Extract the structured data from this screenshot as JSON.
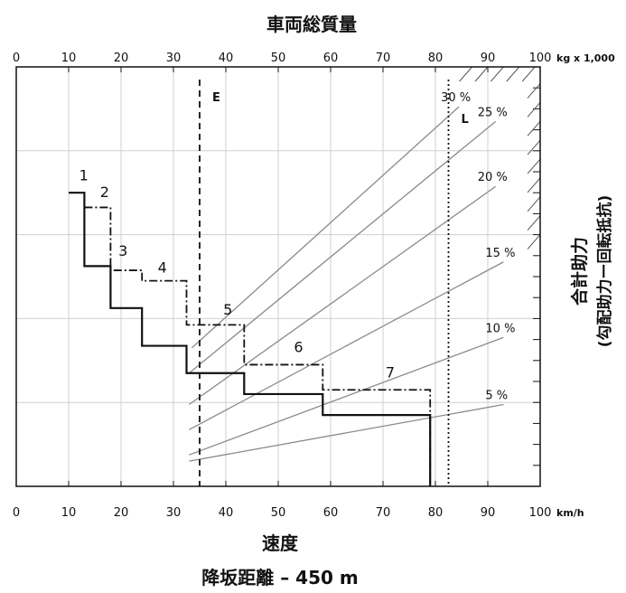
{
  "chart_data": {
    "type": "line",
    "top_title": "車両総質量",
    "top_unit": "kg x 1,000",
    "bottom_unit": "km/h",
    "bottom_title_1": "速度",
    "bottom_title_2": "降坂距離 – 450 m",
    "right_title_1": "合計助力",
    "right_title_2": "(勾配助力ー回転抵抗)",
    "x_ticks": [
      "0",
      "10",
      "20",
      "30",
      "40",
      "50",
      "60",
      "70",
      "80",
      "90",
      "100"
    ],
    "xlim": [
      0,
      100
    ],
    "ylim": [
      0,
      100
    ],
    "grid": true,
    "markers": [
      {
        "label": "E",
        "x": 35,
        "style": "dashed"
      },
      {
        "label": "L",
        "x": 82.5,
        "style": "dotted"
      }
    ],
    "gradient_lines": [
      {
        "label": "30 %",
        "x1": 33.5,
        "y1": 33,
        "x2": 84.5,
        "y2": 90.5
      },
      {
        "label": "25 %",
        "x1": 33,
        "y1": 27,
        "x2": 91.5,
        "y2": 87
      },
      {
        "label": "20 %",
        "x1": 33,
        "y1": 19.5,
        "x2": 91.5,
        "y2": 71.5
      },
      {
        "label": "15 %",
        "x1": 33,
        "y1": 13.5,
        "x2": 93,
        "y2": 53.5
      },
      {
        "label": "10 %",
        "x1": 33,
        "y1": 7.5,
        "x2": 93,
        "y2": 35.5
      },
      {
        "label": "5 %",
        "x1": 33,
        "y1": 6,
        "x2": 93,
        "y2": 19.5
      }
    ],
    "series": [
      {
        "name": "solid",
        "style": "solid",
        "points": [
          [
            10,
            70
          ],
          [
            13,
            70
          ],
          [
            13,
            52.5
          ],
          [
            18,
            52.5
          ],
          [
            18,
            42.5
          ],
          [
            24,
            42.5
          ],
          [
            24,
            33.5
          ],
          [
            32.5,
            33.5
          ],
          [
            32.5,
            27
          ],
          [
            43.5,
            27
          ],
          [
            43.5,
            22
          ],
          [
            58.5,
            22
          ],
          [
            58.5,
            17
          ],
          [
            79,
            17
          ],
          [
            79,
            0
          ]
        ]
      },
      {
        "name": "dashdot",
        "style": "dashdot",
        "points": [
          [
            13,
            66.5
          ],
          [
            18,
            66.5
          ],
          [
            18,
            51.5
          ],
          [
            24,
            51.5
          ],
          [
            24,
            49
          ],
          [
            32.5,
            49
          ],
          [
            32.5,
            38.5
          ],
          [
            43.5,
            38.5
          ],
          [
            43.5,
            29
          ],
          [
            58.5,
            29
          ],
          [
            58.5,
            23
          ],
          [
            79,
            23
          ],
          [
            79,
            0
          ]
        ]
      }
    ],
    "step_labels": [
      {
        "label": "1",
        "x": 12,
        "y": 73
      },
      {
        "label": "2",
        "x": 16,
        "y": 69
      },
      {
        "label": "3",
        "x": 19.5,
        "y": 55
      },
      {
        "label": "4",
        "x": 27,
        "y": 51
      },
      {
        "label": "5",
        "x": 39.5,
        "y": 41
      },
      {
        "label": "6",
        "x": 53,
        "y": 32
      },
      {
        "label": "7",
        "x": 70.5,
        "y": 26
      }
    ]
  }
}
